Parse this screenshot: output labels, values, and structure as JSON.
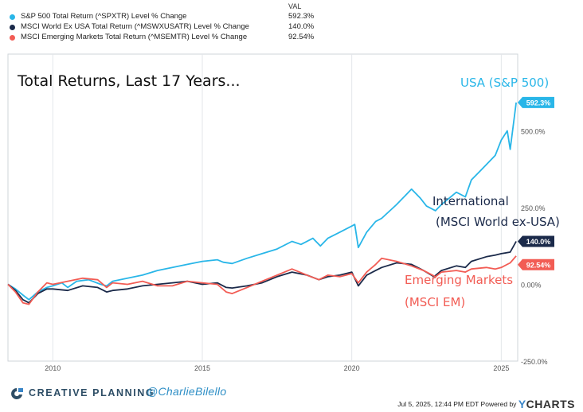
{
  "legend": {
    "header": "VAL",
    "items": [
      {
        "name": "S&P 500 Total Return (^SPXTR) Level % Change",
        "value": "592.3%",
        "color": "#29b6e8"
      },
      {
        "name": "MSCI World Ex USA Total Return (^MSWXUSATR) Level % Change",
        "value": "140.0%",
        "color": "#1b2a4a"
      },
      {
        "name": "MSCI Emerging Markets Total Return (^MSEMTR) Level % Change",
        "value": "92.54%",
        "color": "#f25c54"
      }
    ]
  },
  "annotations": {
    "title": "Total Returns, Last 17 Years...",
    "usa": "USA (S&P 500)",
    "intl_line1": "International",
    "intl_line2": "(MSCI World ex-USA)",
    "em_line1": "Emerging Markets",
    "em_line2": "(MSCI EM)"
  },
  "branding": {
    "company": "CREATIVE PLANNING",
    "handle": "@CharlieBilello",
    "timestamp": "Jul 5, 2025, 12:44 PM EDT Powered by",
    "logo_y": "Y",
    "logo_rest": "CHARTS"
  },
  "chart_data": {
    "type": "line",
    "title": "Total Returns, Last 17 Years...",
    "xlabel": "",
    "ylabel": "",
    "xlim": [
      2008.5,
      2025.55
    ],
    "ylim": [
      -250,
      750
    ],
    "x_ticks": [
      2010,
      2015,
      2020,
      2025
    ],
    "x_tick_labels": [
      "2010",
      "2015",
      "2020",
      "2025"
    ],
    "y_ticks": [
      -250,
      0,
      250,
      500
    ],
    "y_tick_labels": [
      "-250.0%",
      "0.00%",
      "250.0%",
      "500.0%"
    ],
    "grid": "vertical",
    "series": [
      {
        "name": "S&P 500 Total Return (^SPXTR) Level % Change",
        "color": "#29b6e8",
        "last_label": "592.3%",
        "points": [
          [
            2008.5,
            0
          ],
          [
            2008.75,
            -15
          ],
          [
            2009.0,
            -35
          ],
          [
            2009.2,
            -50
          ],
          [
            2009.5,
            -25
          ],
          [
            2009.8,
            -10
          ],
          [
            2010.0,
            -5
          ],
          [
            2010.3,
            5
          ],
          [
            2010.5,
            -10
          ],
          [
            2010.8,
            10
          ],
          [
            2011.2,
            15
          ],
          [
            2011.6,
            0
          ],
          [
            2011.8,
            -5
          ],
          [
            2012.0,
            10
          ],
          [
            2012.5,
            20
          ],
          [
            2013.0,
            30
          ],
          [
            2013.5,
            45
          ],
          [
            2014.0,
            55
          ],
          [
            2014.5,
            65
          ],
          [
            2015.0,
            75
          ],
          [
            2015.5,
            80
          ],
          [
            2015.7,
            72
          ],
          [
            2016.0,
            68
          ],
          [
            2016.5,
            85
          ],
          [
            2017.0,
            100
          ],
          [
            2017.5,
            115
          ],
          [
            2018.0,
            140
          ],
          [
            2018.3,
            130
          ],
          [
            2018.7,
            150
          ],
          [
            2018.95,
            125
          ],
          [
            2019.2,
            150
          ],
          [
            2019.6,
            170
          ],
          [
            2020.0,
            190
          ],
          [
            2020.1,
            195
          ],
          [
            2020.22,
            120
          ],
          [
            2020.5,
            170
          ],
          [
            2020.8,
            205
          ],
          [
            2021.0,
            215
          ],
          [
            2021.5,
            260
          ],
          [
            2022.0,
            310
          ],
          [
            2022.3,
            280
          ],
          [
            2022.5,
            255
          ],
          [
            2022.8,
            240
          ],
          [
            2023.0,
            260
          ],
          [
            2023.5,
            300
          ],
          [
            2023.8,
            285
          ],
          [
            2024.0,
            340
          ],
          [
            2024.3,
            370
          ],
          [
            2024.5,
            390
          ],
          [
            2024.8,
            420
          ],
          [
            2025.0,
            470
          ],
          [
            2025.2,
            500
          ],
          [
            2025.3,
            440
          ],
          [
            2025.5,
            592.3
          ]
        ]
      },
      {
        "name": "MSCI World Ex USA Total Return (^MSWXUSATR) Level % Change",
        "color": "#1b2a4a",
        "last_label": "140.0%",
        "points": [
          [
            2008.5,
            0
          ],
          [
            2008.75,
            -20
          ],
          [
            2009.0,
            -50
          ],
          [
            2009.2,
            -60
          ],
          [
            2009.5,
            -30
          ],
          [
            2009.8,
            -15
          ],
          [
            2010.0,
            -15
          ],
          [
            2010.5,
            -20
          ],
          [
            2011.0,
            -5
          ],
          [
            2011.5,
            -10
          ],
          [
            2011.8,
            -25
          ],
          [
            2012.0,
            -20
          ],
          [
            2012.5,
            -15
          ],
          [
            2013.0,
            -5
          ],
          [
            2013.5,
            0
          ],
          [
            2014.0,
            5
          ],
          [
            2014.5,
            10
          ],
          [
            2015.0,
            0
          ],
          [
            2015.5,
            5
          ],
          [
            2015.8,
            -10
          ],
          [
            2016.0,
            -12
          ],
          [
            2016.5,
            -5
          ],
          [
            2017.0,
            5
          ],
          [
            2017.5,
            25
          ],
          [
            2018.0,
            40
          ],
          [
            2018.5,
            30
          ],
          [
            2018.9,
            15
          ],
          [
            2019.2,
            25
          ],
          [
            2019.6,
            30
          ],
          [
            2020.0,
            40
          ],
          [
            2020.22,
            -5
          ],
          [
            2020.5,
            30
          ],
          [
            2020.8,
            45
          ],
          [
            2021.0,
            55
          ],
          [
            2021.5,
            70
          ],
          [
            2022.0,
            65
          ],
          [
            2022.4,
            45
          ],
          [
            2022.75,
            25
          ],
          [
            2023.0,
            45
          ],
          [
            2023.5,
            60
          ],
          [
            2023.8,
            55
          ],
          [
            2024.0,
            75
          ],
          [
            2024.5,
            90
          ],
          [
            2024.8,
            95
          ],
          [
            2025.0,
            100
          ],
          [
            2025.3,
            105
          ],
          [
            2025.5,
            140
          ]
        ]
      },
      {
        "name": "MSCI Emerging Markets Total Return (^MSEMTR) Level % Change",
        "color": "#f25c54",
        "last_label": "92.54%",
        "points": [
          [
            2008.5,
            0
          ],
          [
            2008.75,
            -25
          ],
          [
            2009.0,
            -60
          ],
          [
            2009.2,
            -65
          ],
          [
            2009.5,
            -25
          ],
          [
            2009.8,
            5
          ],
          [
            2010.0,
            0
          ],
          [
            2010.5,
            10
          ],
          [
            2011.0,
            20
          ],
          [
            2011.5,
            15
          ],
          [
            2011.8,
            -10
          ],
          [
            2012.0,
            5
          ],
          [
            2012.5,
            0
          ],
          [
            2013.0,
            10
          ],
          [
            2013.5,
            -5
          ],
          [
            2014.0,
            -5
          ],
          [
            2014.5,
            10
          ],
          [
            2015.0,
            5
          ],
          [
            2015.5,
            0
          ],
          [
            2015.8,
            -25
          ],
          [
            2016.0,
            -30
          ],
          [
            2016.5,
            -10
          ],
          [
            2017.0,
            10
          ],
          [
            2017.5,
            30
          ],
          [
            2018.0,
            50
          ],
          [
            2018.5,
            30
          ],
          [
            2018.9,
            15
          ],
          [
            2019.2,
            30
          ],
          [
            2019.6,
            25
          ],
          [
            2020.0,
            35
          ],
          [
            2020.22,
            5
          ],
          [
            2020.5,
            40
          ],
          [
            2020.8,
            65
          ],
          [
            2021.0,
            85
          ],
          [
            2021.5,
            75
          ],
          [
            2022.0,
            60
          ],
          [
            2022.4,
            45
          ],
          [
            2022.8,
            25
          ],
          [
            2023.0,
            40
          ],
          [
            2023.5,
            45
          ],
          [
            2023.8,
            40
          ],
          [
            2024.0,
            50
          ],
          [
            2024.5,
            55
          ],
          [
            2024.8,
            50
          ],
          [
            2025.0,
            55
          ],
          [
            2025.3,
            70
          ],
          [
            2025.5,
            92.54
          ]
        ]
      }
    ]
  }
}
